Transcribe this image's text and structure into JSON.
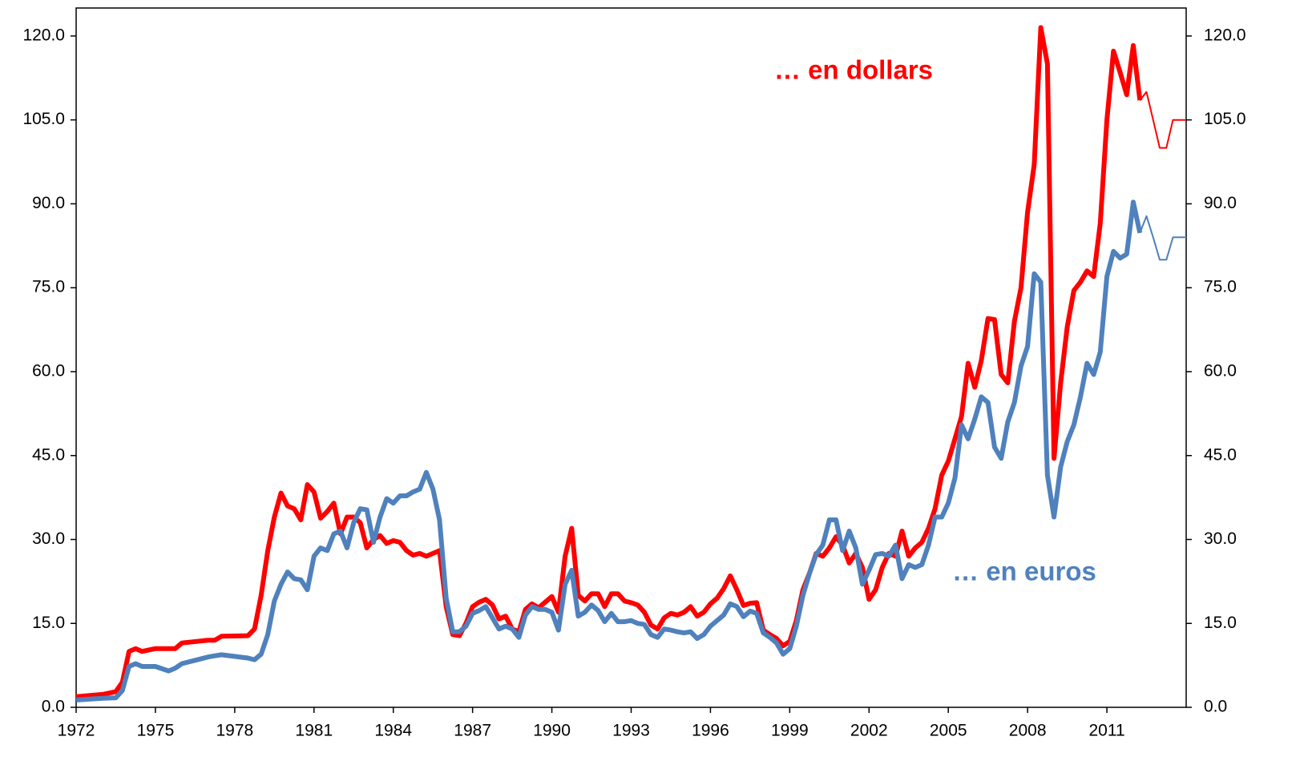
{
  "chart_data": {
    "type": "line",
    "xlim": [
      1972,
      2014
    ],
    "xticks": [
      1972,
      1975,
      1978,
      1981,
      1984,
      1987,
      1990,
      1993,
      1996,
      1999,
      2002,
      2005,
      2008,
      2011
    ],
    "ylim": [
      0,
      125
    ],
    "yticks": [
      {
        "value": 0,
        "label": "0.0"
      },
      {
        "value": 15,
        "label": "15.0"
      },
      {
        "value": 30,
        "label": "30.0"
      },
      {
        "value": 45,
        "label": "45.0"
      },
      {
        "value": 60,
        "label": "60.0"
      },
      {
        "value": 75,
        "label": "75.0"
      },
      {
        "value": 90,
        "label": "90.0"
      },
      {
        "value": 105,
        "label": "105.0"
      },
      {
        "value": 120,
        "label": "120.0"
      }
    ],
    "y2lim": [
      0,
      125
    ],
    "y2ticks": [
      {
        "value": 0,
        "label": "0.0"
      },
      {
        "value": 15,
        "label": "15.0"
      },
      {
        "value": 30,
        "label": "30.0"
      },
      {
        "value": 45,
        "label": "45.0"
      },
      {
        "value": 60,
        "label": "60.0"
      },
      {
        "value": 75,
        "label": "75.0"
      },
      {
        "value": 90,
        "label": "90.0"
      },
      {
        "value": 105,
        "label": "105.0"
      },
      {
        "value": 120,
        "label": "120.0"
      }
    ],
    "grid": false,
    "x": [
      1972,
      1973,
      1973.5,
      1973.75,
      1974,
      1974.25,
      1974.5,
      1975,
      1975.5,
      1975.75,
      1976,
      1977,
      1977.25,
      1977.5,
      1978.5,
      1978.75,
      1979,
      1979.25,
      1979.5,
      1979.75,
      1980,
      1980.25,
      1980.5,
      1980.75,
      1981,
      1981.25,
      1981.5,
      1981.75,
      1982,
      1982.25,
      1982.5,
      1982.75,
      1983,
      1983.25,
      1983.5,
      1983.75,
      1984,
      1984.25,
      1984.5,
      1984.75,
      1985,
      1985.25,
      1985.5,
      1985.75,
      1986,
      1986.25,
      1986.5,
      1986.75,
      1987,
      1987.25,
      1987.5,
      1987.75,
      1988,
      1988.25,
      1988.5,
      1988.75,
      1989,
      1989.25,
      1989.5,
      1989.75,
      1990,
      1990.25,
      1990.5,
      1990.75,
      1991,
      1991.25,
      1991.5,
      1991.75,
      1992,
      1992.25,
      1992.5,
      1992.75,
      1993,
      1993.25,
      1993.5,
      1993.75,
      1994,
      1994.25,
      1994.5,
      1994.75,
      1995,
      1995.25,
      1995.5,
      1995.75,
      1996,
      1996.25,
      1996.5,
      1996.75,
      1997,
      1997.25,
      1997.5,
      1997.75,
      1998,
      1998.25,
      1998.5,
      1998.75,
      1999,
      1999.25,
      1999.5,
      1999.75,
      2000,
      2000.25,
      2000.5,
      2000.75,
      2001,
      2001.25,
      2001.5,
      2001.75,
      2002,
      2002.25,
      2002.5,
      2002.75,
      2003,
      2003.25,
      2003.5,
      2003.75,
      2004,
      2004.25,
      2004.5,
      2004.75,
      2005,
      2005.25,
      2005.5,
      2005.75,
      2006,
      2006.25,
      2006.5,
      2006.75,
      2007,
      2007.25,
      2007.5,
      2007.75,
      2008,
      2008.25,
      2008.5,
      2008.75,
      2009,
      2009.25,
      2009.5,
      2009.75,
      2010,
      2010.25,
      2010.5,
      2010.75,
      2011,
      2011.25,
      2011.5,
      2011.75,
      2012,
      2012.25
    ],
    "series": [
      {
        "name": "… en dollars",
        "color": "#ff0000",
        "width": 6,
        "values": [
          1.9,
          2.3,
          2.8,
          4.5,
          10,
          10.5,
          10,
          10.5,
          10.5,
          10.5,
          11.5,
          12,
          12,
          12.7,
          12.8,
          14,
          20,
          28,
          34,
          38.3,
          36,
          35.5,
          33.5,
          39.8,
          38.5,
          33.8,
          35,
          36.5,
          31,
          34,
          34,
          33,
          28.5,
          30,
          30.7,
          29.3,
          29.8,
          29.5,
          28,
          27.2,
          27.5,
          27,
          27.5,
          28,
          18,
          13,
          12.8,
          15,
          18,
          18.8,
          19.3,
          18.3,
          15.8,
          16.3,
          14,
          13.5,
          17.5,
          18.5,
          17.8,
          18.8,
          19.8,
          17,
          27,
          32,
          20,
          19,
          20.3,
          20.3,
          18,
          20.3,
          20.3,
          19,
          18.7,
          18.3,
          17,
          14.7,
          14,
          16,
          16.8,
          16.5,
          17,
          18,
          16.3,
          17,
          18.5,
          19.5,
          21.2,
          23.5,
          21,
          18.2,
          18.6,
          18.7,
          13.8,
          13,
          12.3,
          11,
          11.8,
          15.5,
          21,
          24,
          27.5,
          27,
          28.5,
          30.5,
          29,
          25.8,
          27.5,
          25,
          19.3,
          21,
          25,
          27.5,
          27,
          31.5,
          27,
          28.5,
          29.5,
          32,
          35.5,
          41.5,
          44,
          48,
          52,
          61.5,
          57.2,
          62,
          69.5,
          69.3,
          59.5,
          58,
          69,
          75,
          88.5,
          97,
          121.5,
          115,
          44.5,
          58,
          68,
          74.5,
          76,
          78,
          77,
          86.5,
          105,
          117.3,
          113.5,
          109.5,
          118.3,
          108.5
        ]
      },
      {
        "name": "… en euros",
        "color": "#4f81bd",
        "width": 6,
        "values": [
          1.3,
          1.6,
          1.7,
          3,
          7.3,
          7.8,
          7.3,
          7.3,
          6.5,
          7,
          7.8,
          9,
          9.2,
          9.4,
          8.8,
          8.5,
          9.5,
          13,
          19,
          22,
          24.2,
          23,
          22.8,
          21,
          27,
          28.5,
          28,
          31,
          31.5,
          28.5,
          33,
          35.5,
          35.3,
          29.5,
          34,
          37.3,
          36.5,
          37.8,
          37.8,
          38.5,
          39,
          42,
          39,
          33.5,
          19.5,
          13.5,
          13.5,
          14.5,
          16.8,
          17.3,
          18,
          16,
          14,
          14.5,
          14,
          12.5,
          16.5,
          18,
          17.5,
          17.5,
          17,
          13.8,
          22,
          24.5,
          16.3,
          17,
          18.3,
          17.3,
          15.3,
          16.8,
          15.3,
          15.3,
          15.5,
          15,
          14.8,
          13,
          12.5,
          14,
          13.8,
          13.5,
          13.3,
          13.5,
          12.3,
          13,
          14.5,
          15.5,
          16.5,
          18.5,
          18,
          16.2,
          17.2,
          16.8,
          13.3,
          12.5,
          11.5,
          9.5,
          10.5,
          14.5,
          20,
          24,
          27.3,
          29,
          33.5,
          33.5,
          28,
          31.5,
          28.5,
          22,
          24.5,
          27.3,
          27.5,
          27,
          29,
          23,
          25.5,
          25,
          25.5,
          29,
          34,
          34,
          36.5,
          41,
          50.5,
          48,
          51.5,
          55.5,
          54.5,
          46.5,
          44.5,
          51,
          54.5,
          61,
          64.5,
          77.5,
          76,
          41.5,
          34,
          43,
          47.5,
          50.5,
          55.5,
          61.5,
          59.5,
          63.5,
          77,
          81.5,
          80.3,
          81,
          90.3,
          84.8
        ]
      },
      {
        "color": "#ff0000",
        "width": 2,
        "x": [
          2012.25,
          2012.5,
          2012.75,
          2013,
          2013.25,
          2013.5,
          2013.75,
          2014
        ],
        "values": [
          108.5,
          110,
          105,
          100,
          100,
          105,
          105,
          105
        ]
      },
      {
        "color": "#4f81bd",
        "width": 2,
        "x": [
          2012.25,
          2012.5,
          2012.75,
          2013,
          2013.25,
          2013.5,
          2013.75,
          2014
        ],
        "values": [
          84.8,
          87.8,
          84,
          80,
          80,
          84,
          84,
          84
        ]
      }
    ]
  }
}
